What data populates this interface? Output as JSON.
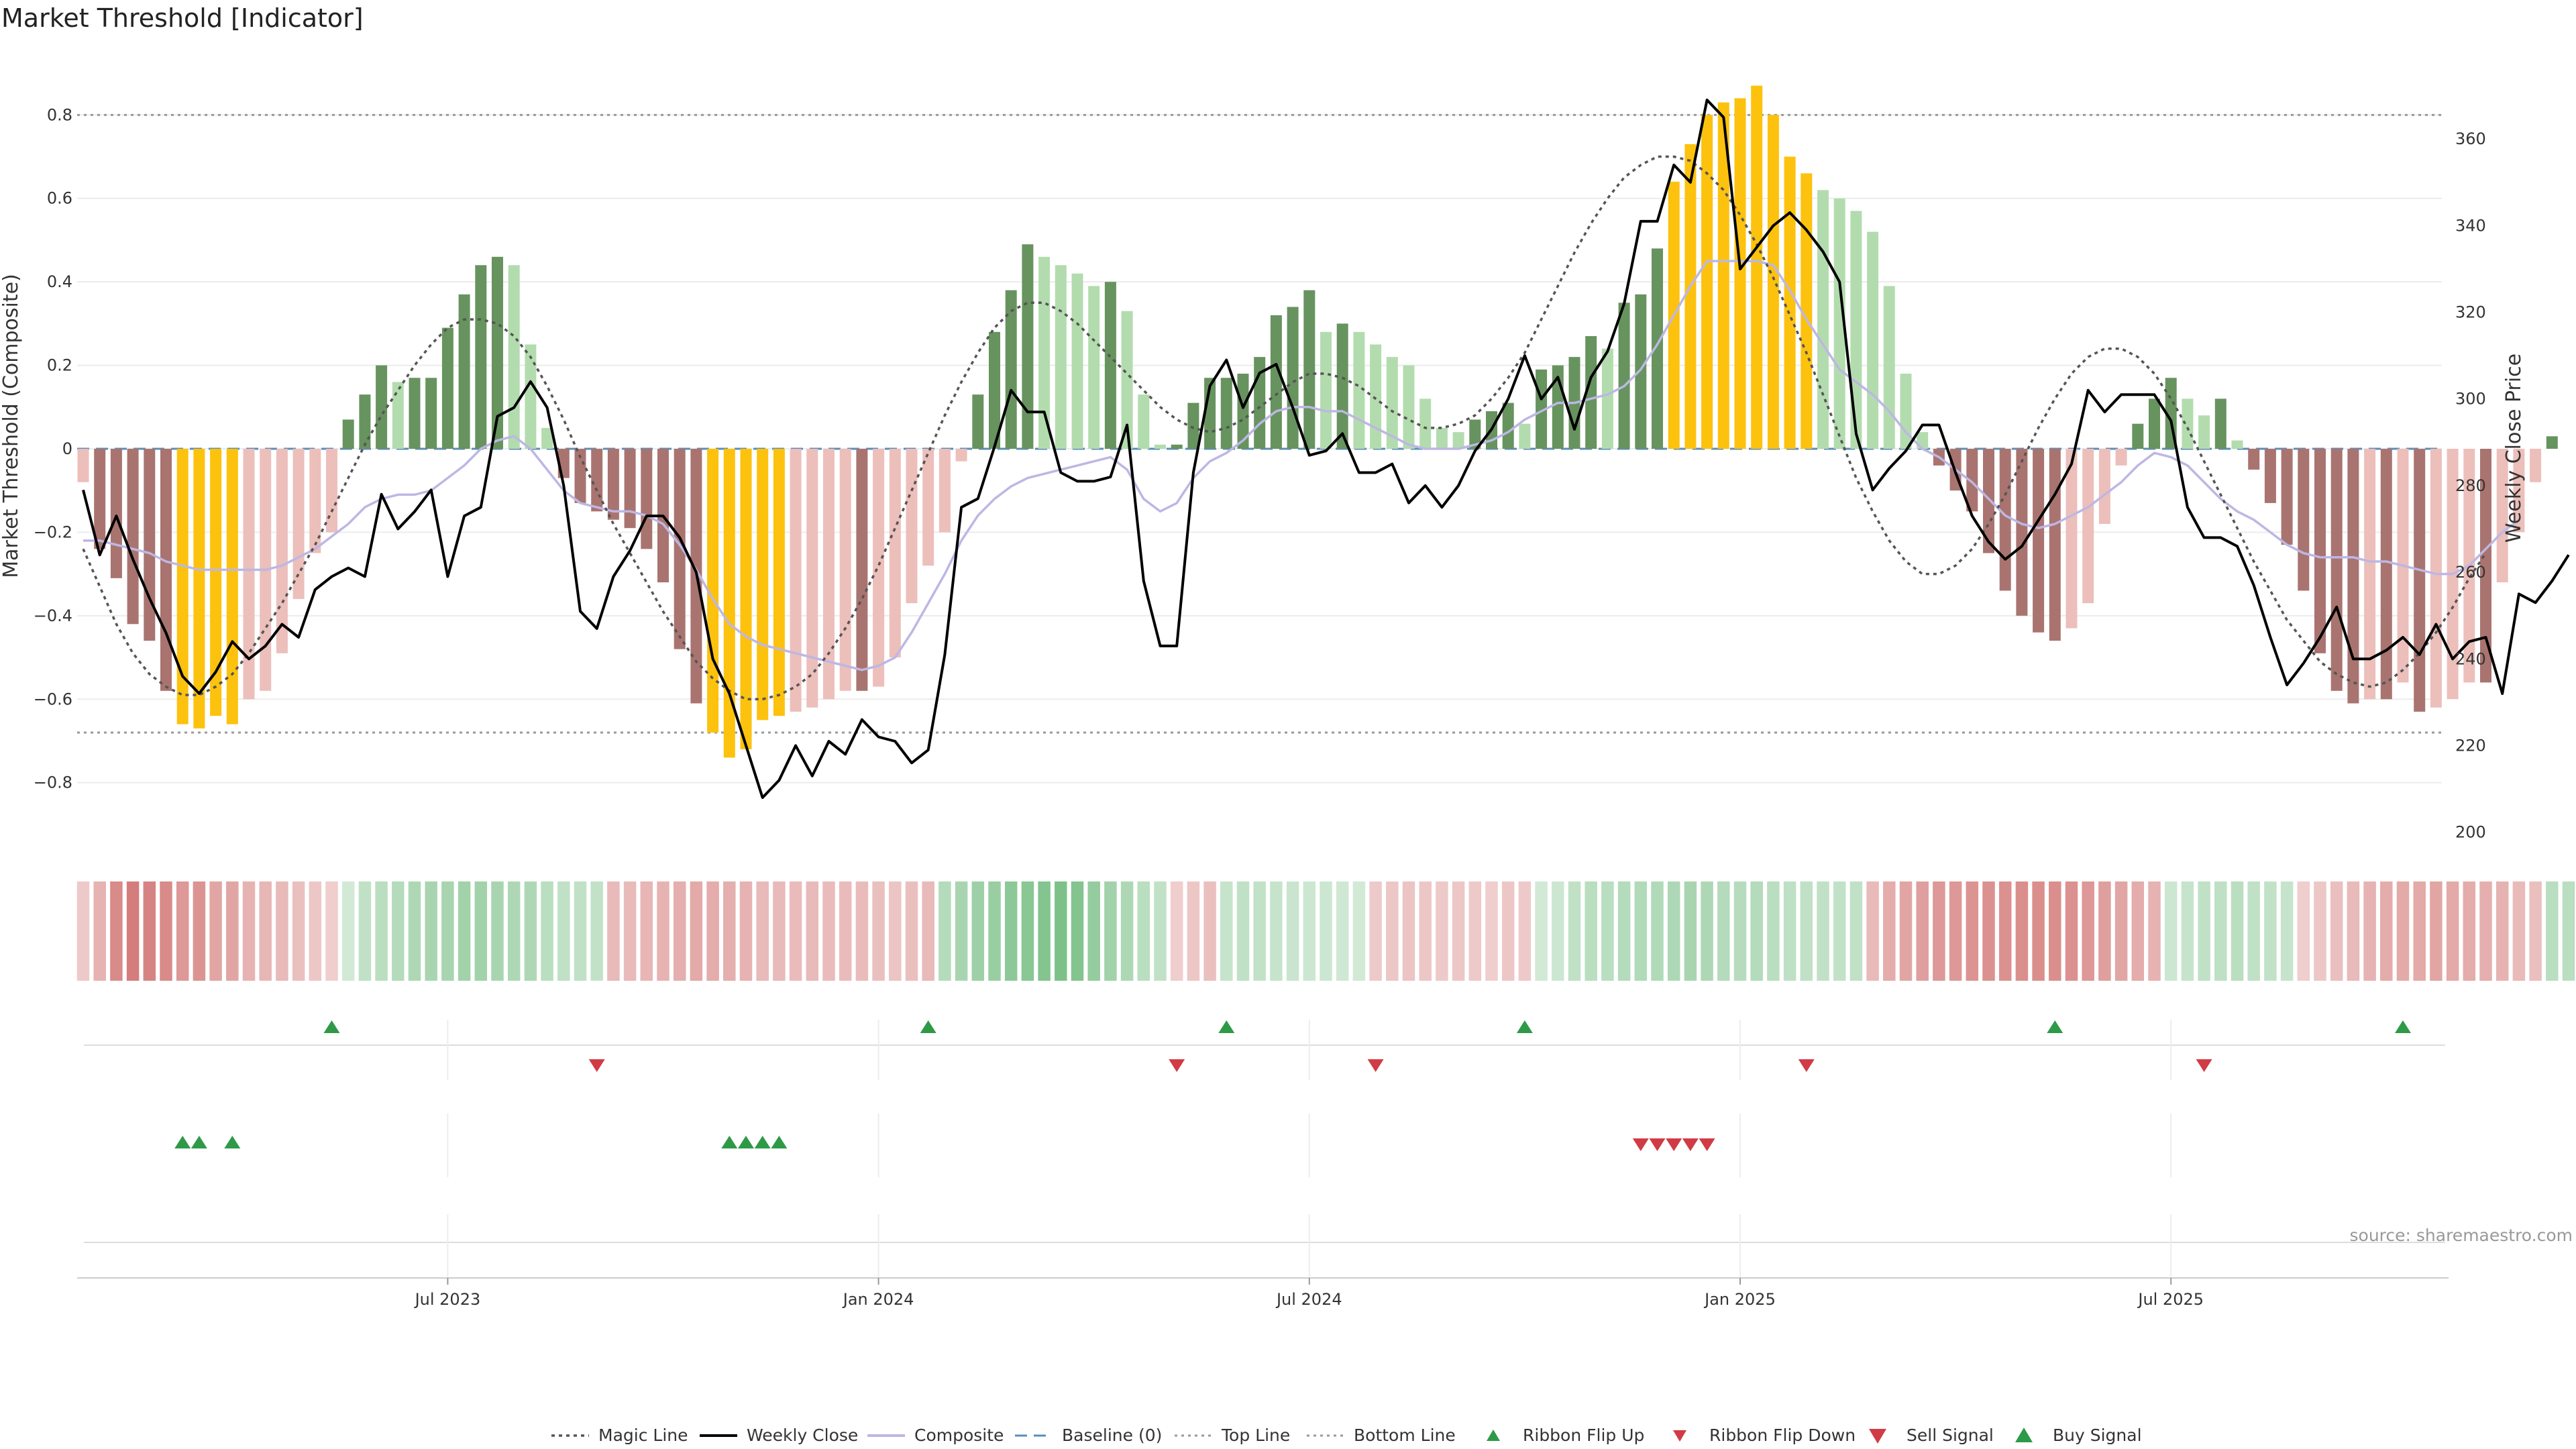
{
  "chart_data": {
    "type": "bar",
    "title": "Market Threshold [Indicator]",
    "ylabel_left": "Market Threshold (Composite)",
    "ylabel_right": "Weekly Close Price",
    "ylim_left": [
      -0.95,
      0.95
    ],
    "ylim_right": [
      197,
      380
    ],
    "yticks_left": [
      0.8,
      0.6,
      0.4,
      0.2,
      0,
      -0.2,
      -0.4,
      -0.6,
      -0.8
    ],
    "ytick_labels_left": [
      "0.8",
      "0.6",
      "0.4",
      "0.2",
      "0",
      "−0.2",
      "−0.4",
      "−0.6",
      "−0.8"
    ],
    "yticks_right": [
      360,
      340,
      320,
      300,
      280,
      260,
      240,
      220,
      200
    ],
    "ytick_labels_right": [
      "360",
      "340",
      "320",
      "300",
      "280",
      "260",
      "240",
      "220",
      "200"
    ],
    "top_line": 0.8,
    "bottom_line": -0.68,
    "x_ticks": [
      {
        "week": 22,
        "label": "Jul 2023"
      },
      {
        "week": 48,
        "label": "Jan 2024"
      },
      {
        "week": 74,
        "label": "Jul 2024"
      },
      {
        "week": 100,
        "label": "Jan 2025"
      },
      {
        "week": 126,
        "label": "Jul 2025"
      }
    ],
    "composite_bars": [
      -0.08,
      -0.24,
      -0.31,
      -0.42,
      -0.46,
      -0.58,
      -0.66,
      -0.67,
      -0.64,
      -0.66,
      -0.6,
      -0.58,
      -0.49,
      -0.36,
      -0.25,
      -0.2,
      0.07,
      0.13,
      0.2,
      0.16,
      0.17,
      0.17,
      0.29,
      0.37,
      0.44,
      0.46,
      0.44,
      0.25,
      0.05,
      -0.07,
      -0.13,
      -0.15,
      -0.17,
      -0.19,
      -0.24,
      -0.32,
      -0.48,
      -0.61,
      -0.68,
      -0.74,
      -0.72,
      -0.65,
      -0.64,
      -0.63,
      -0.62,
      -0.6,
      -0.58,
      -0.58,
      -0.57,
      -0.5,
      -0.37,
      -0.28,
      -0.2,
      -0.03,
      0.13,
      0.28,
      0.38,
      0.49,
      0.46,
      0.44,
      0.42,
      0.39,
      0.4,
      0.33,
      0.13,
      0.01,
      0.01,
      0.11,
      0.17,
      0.17,
      0.18,
      0.22,
      0.32,
      0.34,
      0.38,
      0.28,
      0.3,
      0.28,
      0.25,
      0.22,
      0.2,
      0.12,
      0.05,
      0.04,
      0.07,
      0.09,
      0.11,
      0.06,
      0.19,
      0.2,
      0.22,
      0.27,
      0.24,
      0.35,
      0.37,
      0.48,
      0.64,
      0.73,
      0.8,
      0.83,
      0.84,
      0.87,
      0.8,
      0.7,
      0.66,
      0.62,
      0.6,
      0.57,
      0.52,
      0.39,
      0.18,
      0.04,
      -0.04,
      -0.1,
      -0.15,
      -0.25,
      -0.34,
      -0.4,
      -0.44,
      -0.46,
      -0.43,
      -0.37,
      -0.18,
      -0.04,
      0.06,
      0.12,
      0.17,
      0.12,
      0.08,
      0.12,
      0.02,
      -0.05,
      -0.13,
      -0.23,
      -0.34,
      -0.49,
      -0.58,
      -0.61,
      -0.6,
      -0.6,
      -0.56,
      -0.63,
      -0.62,
      -0.6,
      -0.56,
      -0.56,
      -0.32,
      -0.2,
      -0.08,
      0.03
    ],
    "bar_colors": {
      "strong_negative": "#a97470",
      "weak_negative": "#ecbfbb",
      "strong_positive": "#67935f",
      "weak_positive": "#b3dcae",
      "extreme": "#fcc20d"
    },
    "series": [
      {
        "name": "Weekly Close",
        "axis": "right",
        "color": "#000000",
        "values": [
          279,
          264,
          273,
          263,
          254,
          246,
          236,
          232,
          237,
          244,
          240,
          243,
          248,
          245,
          256,
          259,
          261,
          259,
          278,
          270,
          274,
          279,
          259,
          273,
          275,
          296,
          298,
          304,
          298,
          280,
          251,
          247,
          259,
          265,
          273,
          273,
          268,
          260,
          240,
          232,
          220,
          208,
          212,
          220,
          213,
          221,
          218,
          226,
          222,
          221,
          216,
          219,
          241,
          275,
          277,
          289,
          302,
          297,
          297,
          283,
          281,
          281,
          282,
          294,
          258,
          243,
          243,
          283,
          303,
          309,
          298,
          306,
          308,
          298,
          287,
          288,
          292,
          283,
          283,
          285,
          276,
          280,
          275,
          280,
          288,
          293,
          300,
          310,
          300,
          305,
          293,
          305,
          311,
          322,
          341,
          341,
          354,
          350,
          369,
          365,
          330,
          335,
          340,
          343,
          339,
          334,
          327,
          292,
          279,
          284,
          288,
          294,
          294,
          283,
          273,
          267,
          263,
          266,
          272,
          278,
          285,
          302,
          297,
          301,
          301,
          301,
          295,
          275,
          268,
          268,
          266,
          257,
          245,
          234,
          239,
          245,
          252,
          240,
          240,
          242,
          245,
          241,
          248,
          240,
          244,
          245,
          232,
          255,
          253,
          258,
          264
        ],
        "line_style": "solid"
      },
      {
        "name": "Magic Line",
        "axis": "left",
        "color": "#555555",
        "values": [
          -0.24,
          -0.33,
          -0.42,
          -0.49,
          -0.54,
          -0.57,
          -0.59,
          -0.59,
          -0.57,
          -0.54,
          -0.49,
          -0.43,
          -0.37,
          -0.3,
          -0.23,
          -0.15,
          -0.07,
          0.01,
          0.08,
          0.14,
          0.2,
          0.25,
          0.29,
          0.31,
          0.31,
          0.3,
          0.27,
          0.22,
          0.15,
          0.07,
          -0.02,
          -0.1,
          -0.18,
          -0.25,
          -0.32,
          -0.39,
          -0.45,
          -0.51,
          -0.55,
          -0.58,
          -0.6,
          -0.6,
          -0.59,
          -0.57,
          -0.54,
          -0.49,
          -0.43,
          -0.36,
          -0.28,
          -0.19,
          -0.1,
          -0.01,
          0.08,
          0.16,
          0.23,
          0.29,
          0.33,
          0.35,
          0.35,
          0.33,
          0.3,
          0.26,
          0.22,
          0.18,
          0.14,
          0.1,
          0.07,
          0.05,
          0.04,
          0.05,
          0.07,
          0.1,
          0.13,
          0.16,
          0.18,
          0.18,
          0.17,
          0.15,
          0.12,
          0.09,
          0.07,
          0.05,
          0.05,
          0.06,
          0.08,
          0.12,
          0.17,
          0.23,
          0.31,
          0.39,
          0.47,
          0.54,
          0.6,
          0.65,
          0.68,
          0.7,
          0.7,
          0.69,
          0.66,
          0.62,
          0.56,
          0.49,
          0.41,
          0.32,
          0.23,
          0.13,
          0.03,
          -0.07,
          -0.15,
          -0.22,
          -0.27,
          -0.3,
          -0.3,
          -0.28,
          -0.24,
          -0.18,
          -0.11,
          -0.03,
          0.05,
          0.12,
          0.18,
          0.22,
          0.24,
          0.24,
          0.22,
          0.18,
          0.12,
          0.05,
          -0.03,
          -0.11,
          -0.19,
          -0.27,
          -0.34,
          -0.41,
          -0.46,
          -0.51,
          -0.54,
          -0.56,
          -0.57,
          -0.56,
          -0.53,
          -0.49,
          -0.44,
          -0.38,
          -0.31,
          -0.25
        ],
        "line_style": "dotted"
      },
      {
        "name": "Composite",
        "axis": "left",
        "color": "#bdb7e3",
        "values": [
          -0.22,
          -0.22,
          -0.23,
          -0.24,
          -0.25,
          -0.27,
          -0.28,
          -0.29,
          -0.29,
          -0.29,
          -0.29,
          -0.29,
          -0.28,
          -0.26,
          -0.24,
          -0.21,
          -0.18,
          -0.14,
          -0.12,
          -0.11,
          -0.11,
          -0.1,
          -0.07,
          -0.04,
          0.0,
          0.02,
          0.03,
          0.0,
          -0.05,
          -0.1,
          -0.13,
          -0.14,
          -0.15,
          -0.15,
          -0.16,
          -0.18,
          -0.23,
          -0.29,
          -0.36,
          -0.42,
          -0.45,
          -0.47,
          -0.48,
          -0.49,
          -0.5,
          -0.51,
          -0.52,
          -0.53,
          -0.52,
          -0.5,
          -0.44,
          -0.37,
          -0.3,
          -0.22,
          -0.16,
          -0.12,
          -0.09,
          -0.07,
          -0.06,
          -0.05,
          -0.04,
          -0.03,
          -0.02,
          -0.05,
          -0.12,
          -0.15,
          -0.13,
          -0.07,
          -0.03,
          -0.01,
          0.02,
          0.06,
          0.09,
          0.1,
          0.1,
          0.09,
          0.09,
          0.07,
          0.05,
          0.03,
          0.01,
          0.0,
          0.0,
          0.0,
          0.01,
          0.02,
          0.04,
          0.07,
          0.09,
          0.11,
          0.11,
          0.12,
          0.13,
          0.15,
          0.19,
          0.25,
          0.32,
          0.39,
          0.45,
          0.45,
          0.45,
          0.45,
          0.44,
          0.38,
          0.31,
          0.25,
          0.19,
          0.16,
          0.13,
          0.09,
          0.04,
          0.0,
          -0.02,
          -0.05,
          -0.08,
          -0.12,
          -0.16,
          -0.18,
          -0.19,
          -0.18,
          -0.16,
          -0.14,
          -0.11,
          -0.08,
          -0.04,
          -0.01,
          -0.02,
          -0.04,
          -0.08,
          -0.12,
          -0.15,
          -0.17,
          -0.2,
          -0.23,
          -0.25,
          -0.26,
          -0.26,
          -0.26,
          -0.27,
          -0.27,
          -0.28,
          -0.29,
          -0.3,
          -0.3,
          -0.28,
          -0.24,
          -0.2,
          -0.17
        ],
        "line_style": "solid"
      }
    ],
    "ribbon": {
      "strength": [
        -0.18,
        -0.35,
        -0.65,
        -0.75,
        -0.7,
        -0.65,
        -0.55,
        -0.58,
        -0.45,
        -0.45,
        -0.35,
        -0.32,
        -0.3,
        -0.25,
        -0.2,
        -0.15,
        0.15,
        0.3,
        0.35,
        0.4,
        0.45,
        0.5,
        0.5,
        0.55,
        0.55,
        0.5,
        0.45,
        0.45,
        0.35,
        0.3,
        0.3,
        0.28,
        -0.3,
        -0.3,
        -0.33,
        -0.35,
        -0.38,
        -0.42,
        -0.4,
        -0.38,
        -0.35,
        -0.3,
        -0.3,
        -0.28,
        -0.3,
        -0.28,
        -0.28,
        -0.28,
        -0.25,
        -0.22,
        -0.25,
        -0.3,
        0.4,
        0.5,
        0.58,
        0.62,
        0.72,
        0.75,
        0.8,
        0.85,
        0.8,
        0.65,
        0.55,
        0.45,
        0.35,
        0.3,
        -0.15,
        -0.2,
        -0.25,
        0.25,
        0.3,
        0.28,
        0.25,
        0.22,
        0.2,
        0.2,
        0.18,
        0.15,
        -0.18,
        -0.2,
        -0.22,
        -0.2,
        -0.18,
        -0.2,
        -0.18,
        -0.15,
        -0.2,
        -0.18,
        0.15,
        0.2,
        0.3,
        0.35,
        0.35,
        0.4,
        0.42,
        0.42,
        0.45,
        0.5,
        0.45,
        0.4,
        0.38,
        0.4,
        0.35,
        0.32,
        0.3,
        0.3,
        0.28,
        0.3,
        -0.3,
        -0.4,
        -0.45,
        -0.5,
        -0.55,
        -0.55,
        -0.58,
        -0.6,
        -0.6,
        -0.62,
        -0.62,
        -0.62,
        -0.6,
        -0.55,
        -0.5,
        -0.45,
        -0.4,
        -0.35,
        0.2,
        0.25,
        0.3,
        0.32,
        0.35,
        0.3,
        0.28,
        0.25,
        -0.15,
        -0.2,
        -0.25,
        -0.3,
        -0.35,
        -0.4,
        -0.42,
        -0.42,
        -0.45,
        -0.42,
        -0.4,
        -0.38,
        -0.35,
        -0.3,
        -0.25,
        0.35,
        0.35,
        0.35
      ],
      "positive_color": "#6bb879",
      "negative_color": "#c95c5a"
    },
    "ribbon_flip_up_weeks": [
      15,
      51,
      69,
      87,
      119,
      140
    ],
    "ribbon_flip_down_weeks": [
      31,
      66,
      78,
      104,
      128
    ],
    "buy_signal_weeks": [
      6,
      7,
      9,
      39,
      40,
      41,
      42
    ],
    "sell_signal_weeks": [
      94,
      95,
      96,
      97,
      98
    ],
    "marker_colors": {
      "up": "#2e9a47",
      "down": "#d13b45"
    },
    "legend": [
      {
        "key": "magic",
        "label": "Magic Line"
      },
      {
        "key": "weekly",
        "label": "Weekly Close"
      },
      {
        "key": "composite",
        "label": "Composite"
      },
      {
        "key": "baseline",
        "label": "Baseline (0)"
      },
      {
        "key": "topline",
        "label": "Top Line"
      },
      {
        "key": "bottomline",
        "label": "Bottom Line"
      },
      {
        "key": "flipup",
        "label": "Ribbon Flip Up"
      },
      {
        "key": "flipdown",
        "label": "Ribbon Flip Down"
      },
      {
        "key": "sell",
        "label": "Sell Signal"
      },
      {
        "key": "buy",
        "label": "Buy Signal"
      }
    ],
    "source": "source: sharemaestro.com"
  }
}
